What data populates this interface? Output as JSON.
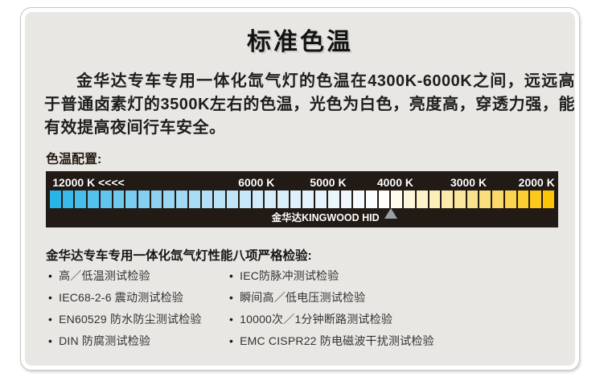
{
  "page_title": "标准色温",
  "intro_paragraph": "金华达专车专用一体化氙气灯的色温在4300K-6000K之间，远远高于普通卤素灯的3500K左右的色温，光色为白色，亮度高，穿透力强，能有效提高夜间行车安全。",
  "section_label": "色温配置:",
  "chart_data": {
    "type": "color-scale",
    "title": "色温配置",
    "unit": "K",
    "axis_range": [
      12000,
      2000
    ],
    "ticks": [
      {
        "label": "12000 K <<<<",
        "value": 12000,
        "pos_pct": 1.3,
        "align": "left"
      },
      {
        "label": "6000 K",
        "value": 6000,
        "pos_pct": 41.1,
        "align": "center"
      },
      {
        "label": "5000 K",
        "value": 5000,
        "pos_pct": 55.1,
        "align": "center"
      },
      {
        "label": "4000 K",
        "value": 4000,
        "pos_pct": 68.2,
        "align": "center"
      },
      {
        "label": "3000 K",
        "value": 3000,
        "pos_pct": 82.5,
        "align": "center"
      },
      {
        "label": "2000 K",
        "value": 2000,
        "pos_pct": 95.8,
        "align": "center"
      }
    ],
    "swatch_count": 40,
    "gradient_stops": [
      {
        "pos": 0.0,
        "color": "#29b5e8"
      },
      {
        "pos": 0.06,
        "color": "#4dc0ec"
      },
      {
        "pos": 0.14,
        "color": "#75caf0"
      },
      {
        "pos": 0.24,
        "color": "#9cd7f3"
      },
      {
        "pos": 0.34,
        "color": "#bce3f7"
      },
      {
        "pos": 0.42,
        "color": "#d2ebf9"
      },
      {
        "pos": 0.5,
        "color": "#e2f1fb"
      },
      {
        "pos": 0.57,
        "color": "#ecf5fc"
      },
      {
        "pos": 0.62,
        "color": "#f5f9fd"
      },
      {
        "pos": 0.65,
        "color": "#ffffff"
      },
      {
        "pos": 0.68,
        "color": "#fffef7"
      },
      {
        "pos": 0.72,
        "color": "#fdf6d8"
      },
      {
        "pos": 0.78,
        "color": "#fbecb4"
      },
      {
        "pos": 0.84,
        "color": "#f9e392"
      },
      {
        "pos": 0.9,
        "color": "#f9d967"
      },
      {
        "pos": 0.95,
        "color": "#fbce30"
      },
      {
        "pos": 1.0,
        "color": "#fdc506"
      }
    ],
    "brand_label": "金华达KINGWOOD HID",
    "pointer_pos_pct": 67.3,
    "bar_bg": "#211a15"
  },
  "tests_section": {
    "heading": "金华达专车专用一体化氙气灯性能八项严格检验:",
    "bullet": "•",
    "columns": {
      "left": [
        "高／低温测试检验",
        "IEC68-2-6 震动测试检验",
        "EN60529 防水防尘测试检验",
        "DIN 防腐测试检验"
      ],
      "right": [
        "IEC防脉冲测试检验",
        "瞬间高／低电压测试检验",
        "10000次／1分钟断路测试检验",
        "EMC CISPR22 防电磁波干扰测试检验"
      ]
    }
  },
  "colors": {
    "card_bg": "#e9e7e3",
    "card_border": "#c9c6c3",
    "bar_bg": "#211a15",
    "scale_text": "#ffffff",
    "pointer_gray": "#9aa0a8",
    "cyan_end": "#29b5e8",
    "gold_end": "#fdc506"
  }
}
